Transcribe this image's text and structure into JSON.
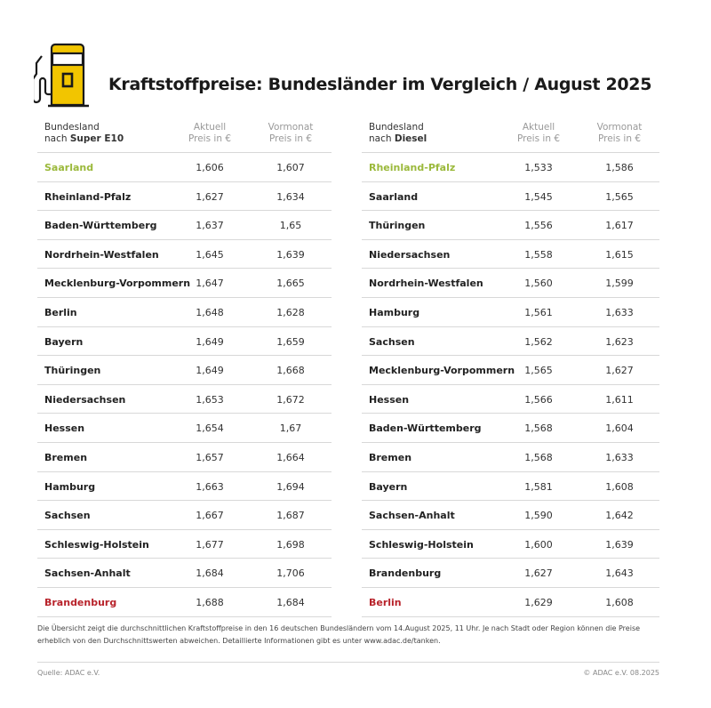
{
  "title": "Kraftstoffpreise: Bundesländer im Vergleich / August 2025",
  "colors": {
    "accent_yellow": "#f2c500",
    "best": "#9bb93b",
    "worst": "#b8232b"
  },
  "icon": "fuel-pump-icon",
  "tables": [
    {
      "header": {
        "col1_line1": "Bundesland",
        "col1_prefix": "nach ",
        "fuel": "Super E10",
        "col2_line1": "Aktuell",
        "col2_line2": "Preis in €",
        "col3_line1": "Vormonat",
        "col3_line2": "Preis in €"
      },
      "rows": [
        {
          "name": "Saarland",
          "current": "1,606",
          "previous": "1,607",
          "highlight": "best"
        },
        {
          "name": "Rheinland-Pfalz",
          "current": "1,627",
          "previous": "1,634"
        },
        {
          "name": "Baden-Württemberg",
          "current": "1,637",
          "previous": "1,65"
        },
        {
          "name": "Nordrhein-Westfalen",
          "current": "1,645",
          "previous": "1,639"
        },
        {
          "name": "Mecklenburg-Vorpommern",
          "current": "1,647",
          "previous": "1,665"
        },
        {
          "name": "Berlin",
          "current": "1,648",
          "previous": "1,628"
        },
        {
          "name": "Bayern",
          "current": "1,649",
          "previous": "1,659"
        },
        {
          "name": "Thüringen",
          "current": "1,649",
          "previous": "1,668"
        },
        {
          "name": "Niedersachsen",
          "current": "1,653",
          "previous": "1,672"
        },
        {
          "name": "Hessen",
          "current": "1,654",
          "previous": "1,67"
        },
        {
          "name": "Bremen",
          "current": "1,657",
          "previous": "1,664"
        },
        {
          "name": "Hamburg",
          "current": "1,663",
          "previous": "1,694"
        },
        {
          "name": "Sachsen",
          "current": "1,667",
          "previous": "1,687"
        },
        {
          "name": "Schleswig-Holstein",
          "current": "1,677",
          "previous": "1,698"
        },
        {
          "name": "Sachsen-Anhalt",
          "current": "1,684",
          "previous": "1,706"
        },
        {
          "name": "Brandenburg",
          "current": "1,688",
          "previous": "1,684",
          "highlight": "worst"
        }
      ]
    },
    {
      "header": {
        "col1_line1": "Bundesland",
        "col1_prefix": "nach ",
        "fuel": "Diesel",
        "col2_line1": "Aktuell",
        "col2_line2": "Preis in €",
        "col3_line1": "Vormonat",
        "col3_line2": "Preis in €"
      },
      "rows": [
        {
          "name": "Rheinland-Pfalz",
          "current": "1,533",
          "previous": "1,586",
          "highlight": "best"
        },
        {
          "name": "Saarland",
          "current": "1,545",
          "previous": "1,565"
        },
        {
          "name": "Thüringen",
          "current": "1,556",
          "previous": "1,617"
        },
        {
          "name": "Niedersachsen",
          "current": "1,558",
          "previous": "1,615"
        },
        {
          "name": "Nordrhein-Westfalen",
          "current": "1,560",
          "previous": "1,599"
        },
        {
          "name": "Hamburg",
          "current": "1,561",
          "previous": "1,633"
        },
        {
          "name": "Sachsen",
          "current": "1,562",
          "previous": "1,623"
        },
        {
          "name": "Mecklenburg-Vorpommern",
          "current": "1,565",
          "previous": "1,627"
        },
        {
          "name": "Hessen",
          "current": "1,566",
          "previous": "1,611"
        },
        {
          "name": "Baden-Württemberg",
          "current": "1,568",
          "previous": "1,604"
        },
        {
          "name": "Bremen",
          "current": "1,568",
          "previous": "1,633"
        },
        {
          "name": "Bayern",
          "current": "1,581",
          "previous": "1,608"
        },
        {
          "name": "Sachsen-Anhalt",
          "current": "1,590",
          "previous": "1,642"
        },
        {
          "name": "Schleswig-Holstein",
          "current": "1,600",
          "previous": "1,639"
        },
        {
          "name": "Brandenburg",
          "current": "1,627",
          "previous": "1,643"
        },
        {
          "name": "Berlin",
          "current": "1,629",
          "previous": "1,608",
          "highlight": "worst"
        }
      ]
    }
  ],
  "footnote": "Die Übersicht zeigt die durchschnittlichen Kraftstoffpreise in den 16 deutschen Bundesländern vom 14.August 2025, 11 Uhr. Je nach Stadt oder Region können die Preise erheblich von den Durchschnittswerten abweichen. Detaillierte Informationen gibt es unter www.adac.de/tanken.",
  "source": "Quelle: ADAC e.V.",
  "copyright": "© ADAC e.V. 08.2025"
}
